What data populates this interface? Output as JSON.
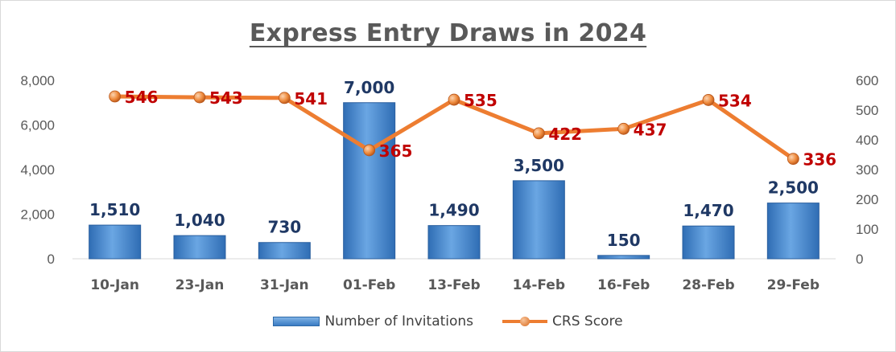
{
  "chart_data": {
    "type": "bar",
    "title": "Express Entry Draws in 2024",
    "categories": [
      "10-Jan",
      "23-Jan",
      "31-Jan",
      "01-Feb",
      "13-Feb",
      "14-Feb",
      "16-Feb",
      "28-Feb",
      "29-Feb"
    ],
    "series": [
      {
        "name": "Number of Invitations",
        "type": "bar",
        "axis": "left",
        "values": [
          1510,
          1040,
          730,
          7000,
          1490,
          3500,
          150,
          1470,
          2500
        ],
        "labels": [
          "1,510",
          "1,040",
          "730",
          "7,000",
          "1,490",
          "3,500",
          "150",
          "1,470",
          "2,500"
        ],
        "color": "#4a8ad4"
      },
      {
        "name": "CRS Score",
        "type": "line",
        "axis": "right",
        "values": [
          546,
          543,
          541,
          365,
          535,
          422,
          437,
          534,
          336
        ],
        "labels": [
          "546",
          "543",
          "541",
          "365",
          "535",
          "422",
          "437",
          "534",
          "336"
        ],
        "color": "#ed7d31"
      }
    ],
    "y_left": {
      "ylim": [
        0,
        8000
      ],
      "ticks": [
        "0",
        "2,000",
        "4,000",
        "6,000",
        "8,000"
      ]
    },
    "y_right": {
      "ylim": [
        0,
        600
      ],
      "ticks": [
        "0",
        "100",
        "200",
        "300",
        "400",
        "500",
        "600"
      ]
    },
    "grid": false,
    "legend": "bottom"
  },
  "colors": {
    "bar": "#4a8ad4",
    "line": "#ed7d31",
    "bar_label": "#1f3864",
    "line_label": "#c00000",
    "axis_text": "#595959"
  }
}
